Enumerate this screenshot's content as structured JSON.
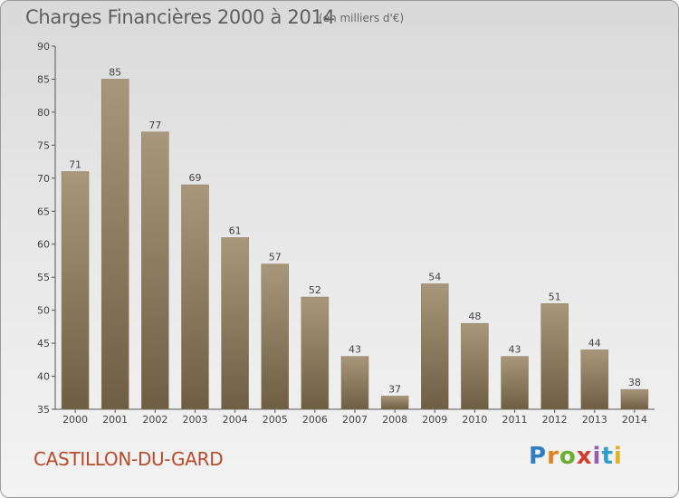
{
  "title": "Charges Financières 2000 à 2014",
  "subtitle": "(en milliers d'€)",
  "city": "CASTILLON-DU-GARD",
  "logo": [
    "P",
    "r",
    "o",
    "x",
    "i",
    "t",
    "i"
  ],
  "colors": {
    "bar_top": "#a8977a",
    "bar_bottom": "#6e5e44",
    "title": "#5e5e5e",
    "city": "#b64a2a"
  },
  "chart_data": {
    "type": "bar",
    "title": "Charges Financières 2000 à 2014",
    "xlabel": "",
    "ylabel": "",
    "categories": [
      "2000",
      "2001",
      "2002",
      "2003",
      "2004",
      "2005",
      "2006",
      "2007",
      "2008",
      "2009",
      "2010",
      "2011",
      "2012",
      "2013",
      "2014"
    ],
    "values": [
      71,
      85,
      77,
      69,
      61,
      57,
      52,
      43,
      37,
      54,
      48,
      43,
      51,
      44,
      38
    ],
    "ylim": [
      35,
      90
    ],
    "yticks": [
      35,
      40,
      45,
      50,
      55,
      60,
      65,
      70,
      75,
      80,
      85,
      90
    ],
    "grid": false,
    "legend": "none"
  }
}
